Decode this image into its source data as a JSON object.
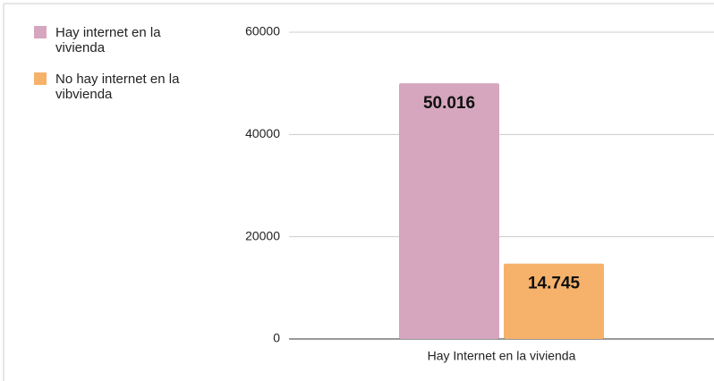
{
  "chart_data": {
    "type": "bar",
    "categories": [
      "Hay Internet en la vivienda"
    ],
    "series": [
      {
        "name": "Hay internet en la vivienda",
        "color": "#d5a6bd",
        "values": [
          50016
        ],
        "value_labels": [
          "50.016"
        ]
      },
      {
        "name": "No hay internet en la vibvienda",
        "color": "#f6b26b",
        "values": [
          14745
        ],
        "value_labels": [
          "14.745"
        ]
      }
    ],
    "ylim": [
      0,
      60000
    ],
    "yticks": [
      0,
      20000,
      40000,
      60000
    ],
    "grid": true,
    "legend": "left"
  }
}
